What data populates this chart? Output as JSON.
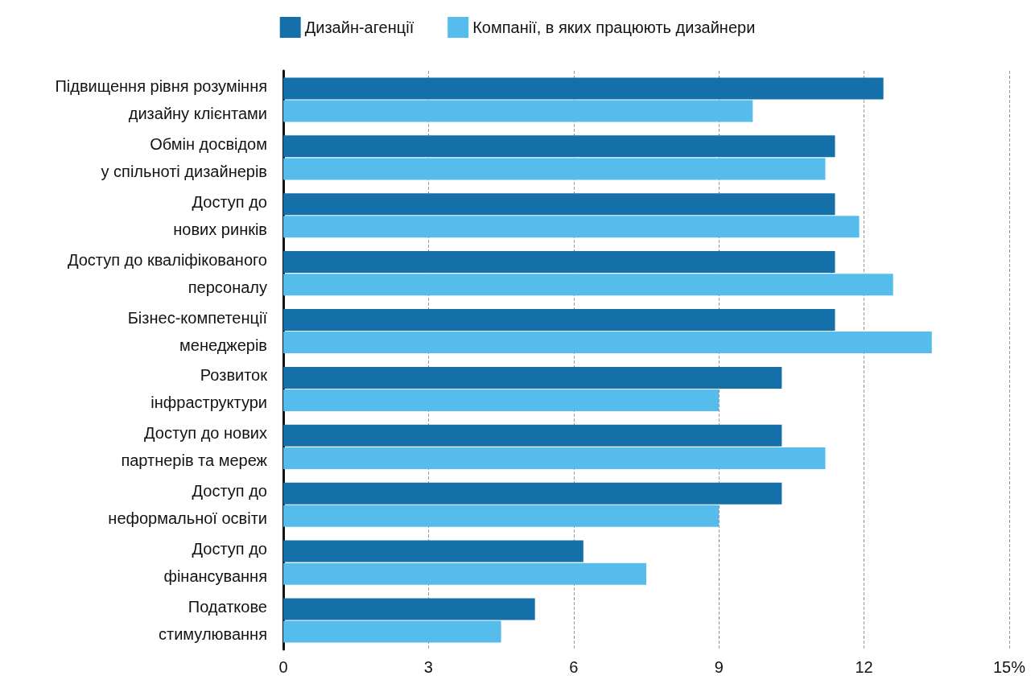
{
  "chart_data": {
    "type": "bar",
    "orientation": "horizontal",
    "categories": [
      "Підвищення рівня розуміння\nдизайну клієнтами",
      "Обмін досвідом\nу спільноті дизайнерів",
      "Доступ до\nнових ринків",
      "Доступ до кваліфікованого\nперсоналу",
      "Бізнес-компетенції\nменеджерів",
      "Розвиток\nінфраструктури",
      "Доступ до нових\nпартнерів та мереж",
      "Доступ до\nнеформальної освіти",
      "Доступ до\nфінансування",
      "Податкове\nстимулювання"
    ],
    "series": [
      {
        "name": "Дизайн-агенції",
        "color": "#1570aa",
        "values": [
          12.4,
          11.4,
          11.4,
          11.4,
          11.4,
          10.3,
          10.3,
          10.3,
          6.2,
          5.2
        ]
      },
      {
        "name": "Компанії, в яких працюють дизайнери",
        "color": "#56bceb",
        "values": [
          9.7,
          11.2,
          11.9,
          12.6,
          13.4,
          9.0,
          11.2,
          9.0,
          7.5,
          4.5
        ]
      }
    ],
    "xlim": [
      0,
      15
    ],
    "xticks": [
      0,
      3,
      6,
      9,
      12,
      {
        "value": 15,
        "label": "15%"
      }
    ],
    "grid": "x",
    "legend": "top"
  }
}
